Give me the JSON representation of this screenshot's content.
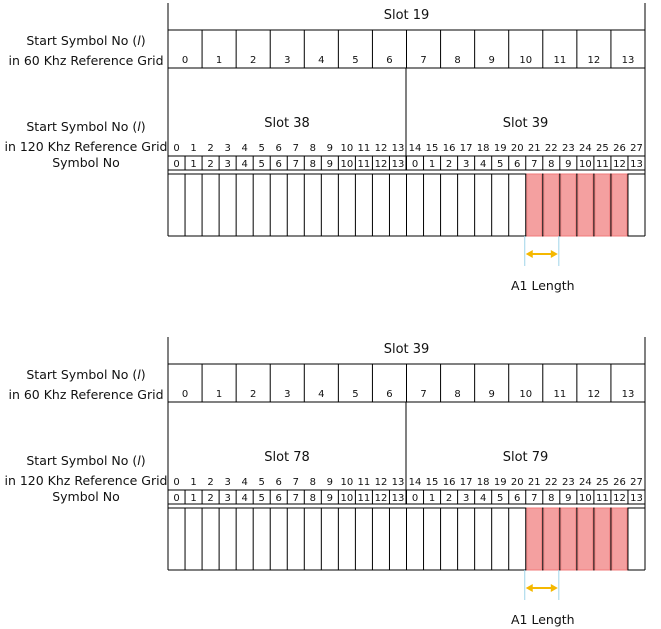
{
  "panels": [
    {
      "top_slot": "Slot 19",
      "left_slot": "Slot 38",
      "right_slot": "Slot 39",
      "a1_label": "A1 Length"
    },
    {
      "top_slot": "Slot 39",
      "left_slot": "Slot 78",
      "right_slot": "Slot 79",
      "a1_label": "A1 Length"
    }
  ],
  "row_labels": {
    "ref60_line1": "Start Symbol No (",
    "ref60_italic": "l",
    "ref60_line1_end": ")",
    "ref60_line2": "in 60 Khz Reference Grid",
    "ref120_line1": "Start Symbol No (",
    "ref120_italic": "l",
    "ref120_line1_end": ")",
    "ref120_line2": "in 120 Khz Reference Grid",
    "symbol_no": "Symbol No"
  },
  "grid60_numbers": [
    "0",
    "1",
    "2",
    "3",
    "4",
    "5",
    "6",
    "7",
    "8",
    "9",
    "10",
    "11",
    "12",
    "13"
  ],
  "grid120_numbers": [
    "0",
    "1",
    "2",
    "3",
    "4",
    "5",
    "6",
    "7",
    "8",
    "9",
    "10",
    "11",
    "12",
    "13",
    "14",
    "15",
    "16",
    "17",
    "18",
    "19",
    "20",
    "21",
    "22",
    "23",
    "24",
    "25",
    "26",
    "27"
  ],
  "symbol_numbers": [
    "0",
    "1",
    "2",
    "3",
    "4",
    "5",
    "6",
    "7",
    "8",
    "9",
    "10",
    "11",
    "12",
    "13",
    "0",
    "1",
    "2",
    "3",
    "4",
    "5",
    "6",
    "7",
    "8",
    "9",
    "10",
    "11",
    "12",
    "13"
  ],
  "highlighted_symbols": [
    21,
    22,
    23,
    24,
    25,
    26
  ],
  "colors": {
    "highlight_fill": "#f4a0a0",
    "highlight_dark": "#f07a7a",
    "arrow": "#f5b800",
    "guide": "#9fd4e8",
    "line": "#000000"
  }
}
